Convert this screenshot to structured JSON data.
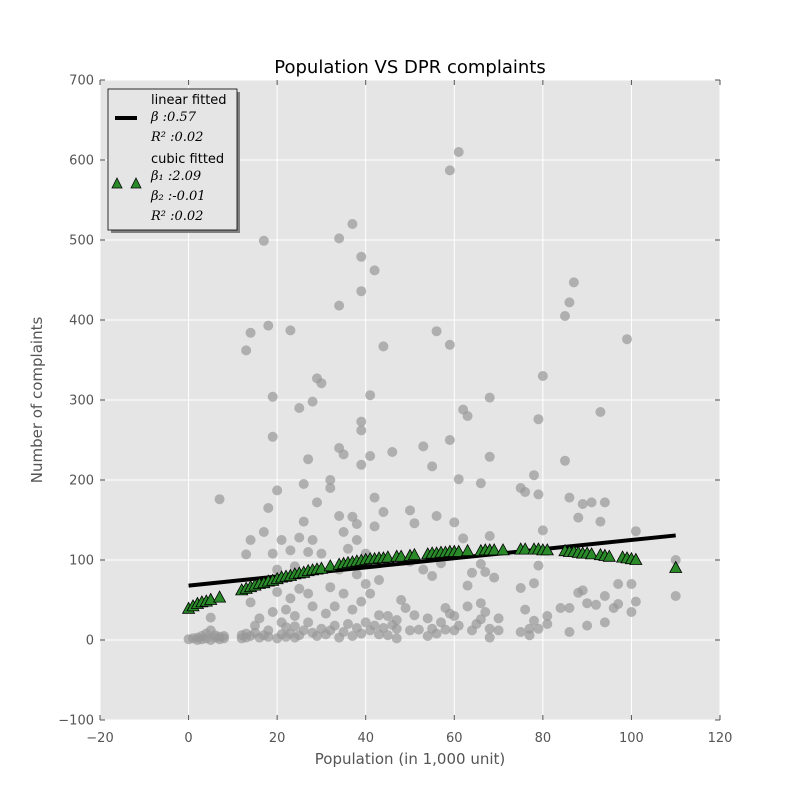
{
  "chart_data": {
    "type": "scatter",
    "title": "Population VS DPR complaints",
    "xlabel": "Population (in 1,000 unit)",
    "ylabel": "Number of complaints",
    "xlim": [
      -20,
      120
    ],
    "ylim": [
      -100,
      700
    ],
    "xticks": [
      -20,
      0,
      20,
      40,
      60,
      80,
      100,
      120
    ],
    "yticks": [
      -100,
      0,
      100,
      200,
      300,
      400,
      500,
      600,
      700
    ],
    "grid": true,
    "legend_position": "top-left",
    "colors": {
      "background": "#e5e5e5",
      "grid": "#ffffff",
      "scatter": "#999999",
      "linear": "#000000",
      "cubic": "#2a8a2a"
    },
    "legend": [
      {
        "label": "linear fitted",
        "lines": [
          "β :0.57",
          "R² :0.02"
        ]
      },
      {
        "label": "cubic fitted",
        "lines": [
          "β₁ :2.09",
          "β₂ :-0.01",
          "R² :0.02"
        ]
      }
    ],
    "linear_fit": {
      "beta": 0.57,
      "intercept": 68,
      "x_range": [
        0,
        110
      ]
    },
    "cubic_fit": {
      "x": [
        0,
        1,
        2,
        3,
        4,
        5,
        7,
        12,
        13,
        14,
        15,
        16,
        17,
        18,
        19,
        20,
        21,
        22,
        23,
        24,
        25,
        26,
        27,
        28,
        29,
        30,
        32,
        34,
        35,
        36,
        37,
        38,
        39,
        40,
        41,
        42,
        43,
        44,
        45,
        47,
        48,
        50,
        51,
        54,
        55,
        56,
        57,
        58,
        59,
        60,
        61,
        63,
        66,
        67,
        68,
        69,
        71,
        75,
        76,
        78,
        79,
        80,
        81,
        85,
        86,
        87,
        88,
        89,
        90,
        91,
        93,
        94,
        95,
        98,
        99,
        100,
        101,
        110
      ],
      "y": [
        39,
        42,
        45,
        47,
        48,
        50,
        53,
        62,
        64,
        66,
        68,
        70,
        71,
        73,
        74,
        76,
        78,
        79,
        80,
        82,
        83,
        84,
        86,
        87,
        88,
        89,
        92,
        94,
        95,
        96,
        97,
        98,
        99,
        100,
        101,
        101,
        102,
        102,
        103,
        104,
        104,
        105,
        106,
        107,
        108,
        108,
        109,
        109,
        110,
        110,
        110,
        111,
        111,
        112,
        112,
        112,
        112,
        113,
        113,
        113,
        113,
        112,
        112,
        111,
        110,
        110,
        109,
        108,
        108,
        107,
        106,
        105,
        104,
        103,
        102,
        101,
        100,
        90
      ]
    },
    "points": [
      [
        0,
        1
      ],
      [
        1,
        2
      ],
      [
        2,
        0
      ],
      [
        2,
        3
      ],
      [
        3,
        1
      ],
      [
        3,
        5
      ],
      [
        4,
        2
      ],
      [
        4,
        8
      ],
      [
        5,
        0
      ],
      [
        5,
        12
      ],
      [
        5,
        28
      ],
      [
        6,
        3
      ],
      [
        6,
        6
      ],
      [
        7,
        1
      ],
      [
        7,
        4
      ],
      [
        7,
        176
      ],
      [
        8,
        2
      ],
      [
        8,
        5
      ],
      [
        12,
        2
      ],
      [
        12,
        6
      ],
      [
        13,
        3
      ],
      [
        13,
        8
      ],
      [
        13,
        107
      ],
      [
        13,
        362
      ],
      [
        14,
        5
      ],
      [
        14,
        47
      ],
      [
        14,
        125
      ],
      [
        14,
        384
      ],
      [
        15,
        9
      ],
      [
        15,
        18
      ],
      [
        16,
        3
      ],
      [
        16,
        27
      ],
      [
        17,
        6
      ],
      [
        17,
        135
      ],
      [
        17,
        499
      ],
      [
        18,
        4
      ],
      [
        18,
        12
      ],
      [
        18,
        165
      ],
      [
        18,
        393
      ],
      [
        19,
        35
      ],
      [
        19,
        108
      ],
      [
        19,
        254
      ],
      [
        19,
        304
      ],
      [
        20,
        2
      ],
      [
        20,
        60
      ],
      [
        20,
        88
      ],
      [
        20,
        187
      ],
      [
        21,
        7
      ],
      [
        21,
        22
      ],
      [
        21,
        125
      ],
      [
        22,
        4
      ],
      [
        22,
        16
      ],
      [
        22,
        38
      ],
      [
        23,
        8
      ],
      [
        23,
        52
      ],
      [
        23,
        112
      ],
      [
        23,
        387
      ],
      [
        24,
        3
      ],
      [
        24,
        17
      ],
      [
        24,
        30
      ],
      [
        24,
        92
      ],
      [
        25,
        6
      ],
      [
        25,
        64
      ],
      [
        25,
        128
      ],
      [
        25,
        290
      ],
      [
        26,
        12
      ],
      [
        26,
        148
      ],
      [
        26,
        195
      ],
      [
        27,
        22
      ],
      [
        27,
        58
      ],
      [
        27,
        226
      ],
      [
        27,
        110
      ],
      [
        28,
        9
      ],
      [
        28,
        42
      ],
      [
        28,
        125
      ],
      [
        28,
        298
      ],
      [
        29,
        5
      ],
      [
        29,
        172
      ],
      [
        29,
        327
      ],
      [
        30,
        14
      ],
      [
        30,
        108
      ],
      [
        30,
        321
      ],
      [
        31,
        7
      ],
      [
        31,
        33
      ],
      [
        32,
        12
      ],
      [
        32,
        66
      ],
      [
        32,
        190
      ],
      [
        32,
        200
      ],
      [
        33,
        18
      ],
      [
        33,
        42
      ],
      [
        34,
        3
      ],
      [
        34,
        88
      ],
      [
        34,
        155
      ],
      [
        34,
        240
      ],
      [
        34,
        418
      ],
      [
        34,
        502
      ],
      [
        35,
        10
      ],
      [
        35,
        58
      ],
      [
        35,
        135
      ],
      [
        35,
        232
      ],
      [
        36,
        20
      ],
      [
        36,
        114
      ],
      [
        37,
        5
      ],
      [
        37,
        38
      ],
      [
        37,
        154
      ],
      [
        37,
        520
      ],
      [
        38,
        15
      ],
      [
        38,
        82
      ],
      [
        38,
        125
      ],
      [
        38,
        145
      ],
      [
        39,
        8
      ],
      [
        39,
        48
      ],
      [
        39,
        219
      ],
      [
        39,
        262
      ],
      [
        39,
        273
      ],
      [
        39,
        436
      ],
      [
        39,
        479
      ],
      [
        40,
        22
      ],
      [
        40,
        70
      ],
      [
        40,
        108
      ],
      [
        41,
        12
      ],
      [
        41,
        306
      ],
      [
        41,
        230
      ],
      [
        41,
        58
      ],
      [
        42,
        18
      ],
      [
        42,
        142
      ],
      [
        42,
        178
      ],
      [
        42,
        462
      ],
      [
        43,
        7
      ],
      [
        43,
        75
      ],
      [
        43,
        31
      ],
      [
        44,
        15
      ],
      [
        44,
        160
      ],
      [
        44,
        367
      ],
      [
        45,
        6
      ],
      [
        45,
        30
      ],
      [
        46,
        19
      ],
      [
        46,
        235
      ],
      [
        47,
        2
      ],
      [
        47,
        14
      ],
      [
        47,
        25
      ],
      [
        48,
        50
      ],
      [
        49,
        40
      ],
      [
        50,
        12
      ],
      [
        50,
        98
      ],
      [
        50,
        162
      ],
      [
        51,
        31
      ],
      [
        51,
        146
      ],
      [
        52,
        13
      ],
      [
        53,
        242
      ],
      [
        53,
        88
      ],
      [
        54,
        5
      ],
      [
        54,
        27
      ],
      [
        55,
        14
      ],
      [
        55,
        80
      ],
      [
        55,
        217
      ],
      [
        56,
        8
      ],
      [
        56,
        155
      ],
      [
        56,
        386
      ],
      [
        57,
        22
      ],
      [
        57,
        96
      ],
      [
        58,
        13
      ],
      [
        58,
        40
      ],
      [
        59,
        33
      ],
      [
        59,
        250
      ],
      [
        59,
        369
      ],
      [
        59,
        587
      ],
      [
        60,
        12
      ],
      [
        60,
        30
      ],
      [
        60,
        147
      ],
      [
        61,
        18
      ],
      [
        61,
        201
      ],
      [
        61,
        610
      ],
      [
        62,
        127
      ],
      [
        62,
        288
      ],
      [
        63,
        42
      ],
      [
        63,
        68
      ],
      [
        63,
        280
      ],
      [
        64,
        12
      ],
      [
        64,
        84
      ],
      [
        65,
        20
      ],
      [
        66,
        26
      ],
      [
        66,
        46
      ],
      [
        66,
        95
      ],
      [
        66,
        196
      ],
      [
        67,
        35
      ],
      [
        67,
        85
      ],
      [
        68,
        3
      ],
      [
        68,
        14
      ],
      [
        68,
        130
      ],
      [
        68,
        229
      ],
      [
        68,
        303
      ],
      [
        69,
        78
      ],
      [
        70,
        12
      ],
      [
        70,
        27
      ],
      [
        75,
        10
      ],
      [
        75,
        190
      ],
      [
        75,
        65
      ],
      [
        76,
        38
      ],
      [
        76,
        185
      ],
      [
        77,
        6
      ],
      [
        77,
        14
      ],
      [
        78,
        24
      ],
      [
        78,
        71
      ],
      [
        78,
        206
      ],
      [
        79,
        14
      ],
      [
        79,
        93
      ],
      [
        79,
        182
      ],
      [
        79,
        276
      ],
      [
        80,
        137
      ],
      [
        80,
        330
      ],
      [
        81,
        30
      ],
      [
        81,
        20
      ],
      [
        84,
        40
      ],
      [
        85,
        405
      ],
      [
        85,
        224
      ],
      [
        86,
        10
      ],
      [
        86,
        40
      ],
      [
        86,
        178
      ],
      [
        86,
        422
      ],
      [
        87,
        447
      ],
      [
        88,
        59
      ],
      [
        88,
        153
      ],
      [
        89,
        170
      ],
      [
        89,
        62
      ],
      [
        90,
        18
      ],
      [
        90,
        46
      ],
      [
        91,
        172
      ],
      [
        92,
        44
      ],
      [
        93,
        148
      ],
      [
        93,
        285
      ],
      [
        94,
        55
      ],
      [
        94,
        172
      ],
      [
        94,
        22
      ],
      [
        96,
        40
      ],
      [
        97,
        70
      ],
      [
        97,
        45
      ],
      [
        99,
        376
      ],
      [
        100,
        35
      ],
      [
        100,
        70
      ],
      [
        101,
        48
      ],
      [
        101,
        136
      ],
      [
        110,
        55
      ],
      [
        110,
        100
      ]
    ]
  }
}
